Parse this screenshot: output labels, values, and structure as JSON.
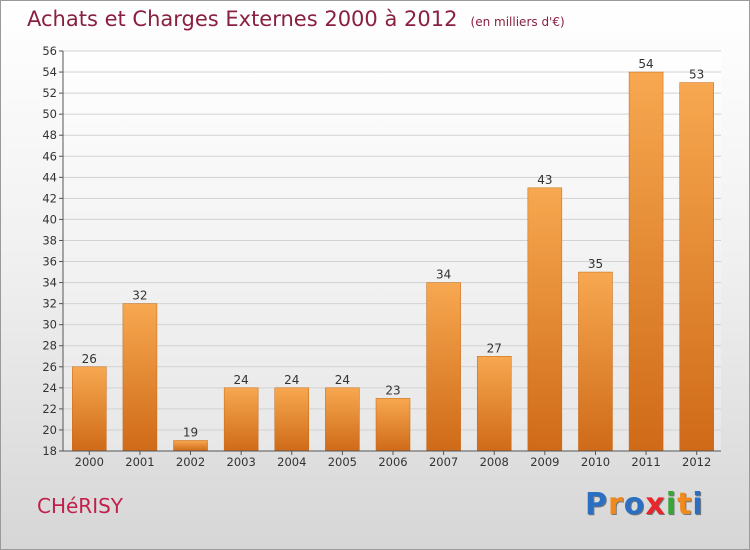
{
  "title": "Achats et Charges Externes 2000 à 2012",
  "unit": "(en milliers d'€)",
  "town": "CHéRISY",
  "logo": {
    "text": "Proxiti",
    "colors": [
      "#2b6fc2",
      "#f08a1c",
      "#2b6fc2",
      "#e8262c",
      "#3aa63a",
      "#f08a1c",
      "#2b6fc2"
    ]
  },
  "chart_data": {
    "type": "bar",
    "categories": [
      "2000",
      "2001",
      "2002",
      "2003",
      "2004",
      "2005",
      "2006",
      "2007",
      "2008",
      "2009",
      "2010",
      "2011",
      "2012"
    ],
    "values": [
      26,
      32,
      19,
      24,
      24,
      24,
      23,
      34,
      27,
      43,
      35,
      54,
      53
    ],
    "title": "Achats et Charges Externes 2000 à 2012",
    "xlabel": "",
    "ylabel": "",
    "ylim": [
      18,
      56
    ],
    "yticks": [
      18,
      20,
      22,
      24,
      26,
      28,
      30,
      32,
      34,
      36,
      38,
      40,
      42,
      44,
      46,
      48,
      50,
      52,
      54,
      56
    ],
    "grid": true,
    "bar_color": "#f08a30"
  }
}
